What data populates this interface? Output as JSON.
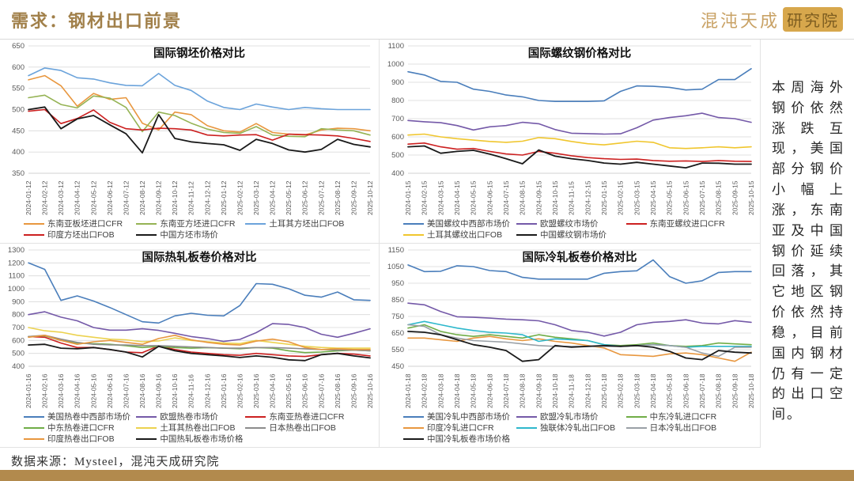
{
  "header": {
    "title": "需求：钢材出口前景",
    "logo_text": "混沌天成",
    "logo_badge": "研究院"
  },
  "sidebar": {
    "commentary": "本周海外钢价依然涨跌互现，美国部分钢价小幅上涨，东南亚及中国钢价延续回落，其它地区钢价依然持稳，目前国内钢材仍有一定的出口空间。"
  },
  "footer": {
    "source": "数据来源：Mysteel，混沌天成研究院"
  },
  "colors": {
    "accent_gold": "#b28a4d",
    "title_gold": "#a1804a",
    "grid": "#d9d9d9",
    "tick_text": "#595959"
  },
  "chart_data": [
    {
      "type": "line",
      "title": "国际钢坯价格对比",
      "ylim": [
        350,
        650
      ],
      "yticks": [
        350,
        400,
        450,
        500,
        550,
        600,
        650
      ],
      "grid": true,
      "legend_position": "bottom",
      "legend_rows": [
        3,
        2
      ],
      "x": [
        "2024-01-12",
        "2024-02-12",
        "2024-03-12",
        "2024-04-12",
        "2024-05-12",
        "2024-06-12",
        "2024-07-12",
        "2024-08-12",
        "2024-09-12",
        "2024-10-12",
        "2024-11-12",
        "2024-12-12",
        "2025-01-12",
        "2025-02-12",
        "2025-03-12",
        "2025-04-12",
        "2025-05-12",
        "2025-06-12",
        "2025-07-12",
        "2025-08-12",
        "2025-09-12",
        "2025-10-12"
      ],
      "series": [
        {
          "name": "东南亚板坯进口CFR",
          "color": "#e8973f",
          "values": [
            570,
            580,
            556,
            508,
            538,
            524,
            528,
            468,
            452,
            494,
            488,
            462,
            450,
            447,
            467,
            446,
            442,
            440,
            452,
            456,
            455,
            450
          ]
        },
        {
          "name": "东南亚方坯进口CFR",
          "color": "#95b354",
          "values": [
            528,
            534,
            512,
            504,
            532,
            527,
            505,
            448,
            494,
            486,
            468,
            454,
            446,
            444,
            460,
            440,
            437,
            436,
            455,
            452,
            450,
            440
          ]
        },
        {
          "name": "土耳其方坯出口FOB",
          "color": "#6ba3db",
          "values": [
            580,
            598,
            592,
            575,
            572,
            563,
            557,
            556,
            585,
            557,
            545,
            520,
            505,
            500,
            513,
            506,
            500,
            505,
            502,
            500,
            500,
            500
          ]
        },
        {
          "name": "印度方坯出口FOB",
          "color": "#cc2020",
          "values": [
            496,
            500,
            467,
            479,
            499,
            470,
            455,
            452,
            456,
            455,
            452,
            440,
            438,
            440,
            441,
            428,
            442,
            441,
            440,
            438,
            432,
            425
          ]
        },
        {
          "name": "中国方坯市场价",
          "color": "#1a1a1a",
          "values": [
            500,
            506,
            455,
            478,
            486,
            464,
            443,
            398,
            488,
            432,
            424,
            420,
            417,
            404,
            430,
            420,
            405,
            400,
            406,
            430,
            418,
            412
          ]
        }
      ]
    },
    {
      "type": "line",
      "title": "国际螺纹钢价格对比",
      "ylim": [
        400,
        1100
      ],
      "yticks": [
        400,
        500,
        600,
        700,
        800,
        900,
        1000,
        1100
      ],
      "grid": true,
      "legend_position": "bottom",
      "legend_rows": [
        3,
        2
      ],
      "x": [
        "2024-01-15",
        "2024-02-15",
        "2024-03-15",
        "2024-04-15",
        "2024-05-15",
        "2024-06-15",
        "2024-07-15",
        "2024-08-15",
        "2024-09-15",
        "2024-10-15",
        "2024-11-15",
        "2024-12-15",
        "2025-01-15",
        "2025-02-15",
        "2025-03-15",
        "2025-04-15",
        "2025-05-15",
        "2025-06-15",
        "2025-07-15",
        "2025-08-15",
        "2025-09-15",
        "2025-10-15"
      ],
      "series": [
        {
          "name": "美国螺纹中西部市场价",
          "color": "#4a7ebb",
          "values": [
            958,
            940,
            905,
            900,
            862,
            850,
            830,
            820,
            800,
            795,
            795,
            795,
            798,
            850,
            880,
            878,
            872,
            858,
            862,
            915,
            915,
            975
          ]
        },
        {
          "name": "欧盟螺纹市场价",
          "color": "#7459a8",
          "values": [
            690,
            683,
            678,
            662,
            638,
            655,
            662,
            680,
            672,
            640,
            620,
            618,
            615,
            617,
            650,
            692,
            706,
            716,
            730,
            706,
            700,
            680
          ]
        },
        {
          "name": "东南亚螺纹进口CFR",
          "color": "#cc2020",
          "values": [
            560,
            566,
            545,
            532,
            536,
            520,
            506,
            500,
            520,
            510,
            496,
            486,
            480,
            476,
            478,
            470,
            466,
            468,
            465,
            470,
            466,
            465
          ]
        },
        {
          "name": "土耳其螺纹出口FOB",
          "color": "#f0c62e",
          "values": [
            610,
            615,
            600,
            590,
            582,
            575,
            570,
            576,
            596,
            590,
            575,
            562,
            556,
            566,
            576,
            570,
            540,
            536,
            540,
            545,
            540,
            545
          ]
        },
        {
          "name": "中国螺纹钢市场价",
          "color": "#1a1a1a",
          "values": [
            545,
            550,
            510,
            520,
            526,
            505,
            480,
            452,
            528,
            494,
            480,
            470,
            456,
            450,
            460,
            450,
            440,
            430,
            456,
            455,
            450,
            450
          ]
        }
      ]
    },
    {
      "type": "line",
      "title": "国际热轧板卷价格对比",
      "ylim": [
        400,
        1300
      ],
      "yticks": [
        400,
        500,
        600,
        700,
        800,
        900,
        1000,
        1100,
        1200,
        1300
      ],
      "grid": true,
      "legend_position": "bottom",
      "legend_rows": [
        3,
        3,
        2
      ],
      "x": [
        "2024-01-16",
        "2024-02-16",
        "2024-03-16",
        "2024-04-16",
        "2024-05-16",
        "2024-06-16",
        "2024-07-16",
        "2024-08-16",
        "2024-09-16",
        "2024-10-16",
        "2024-11-16",
        "2024-12-16",
        "2025-01-16",
        "2025-02-16",
        "2025-03-16",
        "2025-04-16",
        "2025-05-16",
        "2025-06-16",
        "2025-07-16",
        "2025-08-16",
        "2025-09-16",
        "2025-10-16"
      ],
      "series": [
        {
          "name": "美国热卷中西部市场价",
          "color": "#4a7ebb",
          "values": [
            1200,
            1150,
            910,
            945,
            905,
            855,
            800,
            745,
            735,
            790,
            810,
            795,
            790,
            870,
            1040,
            1035,
            1000,
            950,
            935,
            975,
            915,
            910
          ]
        },
        {
          "name": "欧盟热卷市场价",
          "color": "#7459a8",
          "values": [
            800,
            822,
            780,
            752,
            700,
            680,
            680,
            690,
            678,
            655,
            630,
            615,
            592,
            608,
            660,
            730,
            724,
            700,
            648,
            625,
            655,
            690
          ]
        },
        {
          "name": "东南亚热卷进口CFR",
          "color": "#cc2020",
          "values": [
            630,
            625,
            580,
            545,
            546,
            530,
            510,
            505,
            558,
            530,
            510,
            500,
            490,
            485,
            500,
            490,
            480,
            476,
            490,
            500,
            494,
            480
          ]
        },
        {
          "name": "中东热卷进口CFR",
          "color": "#70ad47",
          "values": [
            630,
            636,
            600,
            580,
            575,
            570,
            560,
            545,
            554,
            545,
            540,
            544,
            540,
            536,
            545,
            540,
            520,
            506,
            510,
            520,
            525,
            520
          ]
        },
        {
          "name": "土耳其热卷出口FOB",
          "color": "#ecd24f",
          "values": [
            700,
            675,
            664,
            640,
            625,
            610,
            605,
            590,
            596,
            620,
            600,
            590,
            580,
            576,
            600,
            585,
            570,
            555,
            546,
            540,
            540,
            540
          ]
        },
        {
          "name": "日本热卷出口FOB",
          "color": "#8c8c8c",
          "values": [
            630,
            640,
            610,
            585,
            570,
            566,
            565,
            560,
            560,
            555,
            550,
            546,
            540,
            540,
            545,
            545,
            540,
            535,
            530,
            526,
            525,
            520
          ]
        },
        {
          "name": "印度热卷出口FOB",
          "color": "#e8973f",
          "values": [
            625,
            640,
            600,
            570,
            590,
            600,
            585,
            570,
            615,
            640,
            605,
            585,
            570,
            565,
            595,
            610,
            590,
            545,
            530,
            535,
            530,
            530
          ]
        },
        {
          "name": "中国热轧板卷市场价格",
          "color": "#1a1a1a",
          "values": [
            565,
            570,
            540,
            535,
            545,
            530,
            510,
            472,
            555,
            520,
            500,
            490,
            480,
            468,
            480,
            470,
            450,
            444,
            490,
            500,
            480,
            465
          ]
        }
      ]
    },
    {
      "type": "line",
      "title": "国际冷轧板卷价格对比",
      "ylim": [
        450,
        1150
      ],
      "yticks": [
        450,
        550,
        650,
        750,
        850,
        950,
        1050,
        1150
      ],
      "grid": true,
      "legend_position": "bottom",
      "legend_rows": [
        3,
        3,
        1
      ],
      "x": [
        "2024-01-18",
        "2024-02-18",
        "2024-03-18",
        "2024-04-18",
        "2024-05-18",
        "2024-06-18",
        "2024-07-18",
        "2024-08-18",
        "2024-09-18",
        "2024-10-18",
        "2024-11-18",
        "2024-12-18",
        "2025-01-18",
        "2025-02-18",
        "2025-03-18",
        "2025-04-18",
        "2025-05-18",
        "2025-06-18",
        "2025-07-18",
        "2025-08-18",
        "2025-09-18",
        "2025-10-18"
      ],
      "series": [
        {
          "name": "美国冷轧中西部市场价",
          "color": "#4a7ebb",
          "values": [
            1060,
            1020,
            1022,
            1055,
            1050,
            1026,
            1020,
            985,
            975,
            975,
            975,
            975,
            1010,
            1020,
            1025,
            1090,
            990,
            950,
            965,
            1015,
            1020,
            1020
          ]
        },
        {
          "name": "欧盟冷轧市场价",
          "color": "#7459a8",
          "values": [
            830,
            820,
            780,
            748,
            745,
            740,
            734,
            730,
            724,
            700,
            665,
            655,
            632,
            655,
            700,
            715,
            720,
            730,
            710,
            705,
            725,
            715
          ]
        },
        {
          "name": "中东冷轧进口CFR",
          "color": "#70ad47",
          "values": [
            680,
            700,
            660,
            640,
            630,
            640,
            630,
            620,
            640,
            625,
            615,
            605,
            580,
            575,
            580,
            590,
            575,
            570,
            575,
            590,
            585,
            580
          ]
        },
        {
          "name": "印度冷轧进口CFR",
          "color": "#e8973f",
          "values": [
            620,
            620,
            610,
            600,
            620,
            630,
            615,
            605,
            615,
            600,
            590,
            575,
            560,
            520,
            515,
            510,
            525,
            530,
            520,
            500,
            480,
            535
          ]
        },
        {
          "name": "独联体冷轧出口FOB",
          "color": "#2eb8cc",
          "values": [
            700,
            720,
            700,
            680,
            665,
            655,
            650,
            640,
            600,
            615,
            610,
            605,
            580,
            570,
            575,
            580,
            575,
            565,
            570,
            570,
            570,
            570
          ]
        },
        {
          "name": "日本冷轧出口FOB",
          "color": "#9aa0a6",
          "values": [
            700,
            690,
            640,
            620,
            605,
            600,
            595,
            585,
            575,
            570,
            570,
            570,
            570,
            570,
            575,
            580,
            575,
            565,
            530,
            510,
            565,
            565
          ]
        },
        {
          "name": "中国冷轧板卷市场价格",
          "color": "#1a1a1a",
          "values": [
            660,
            655,
            640,
            610,
            580,
            565,
            545,
            480,
            490,
            575,
            565,
            570,
            575,
            570,
            575,
            565,
            540,
            500,
            490,
            545,
            535,
            530
          ]
        }
      ]
    }
  ]
}
